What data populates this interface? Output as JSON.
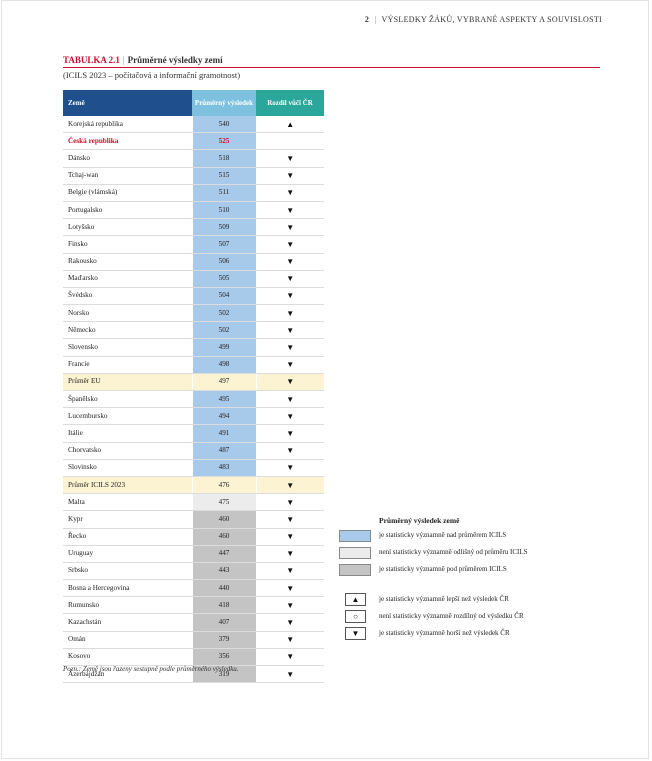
{
  "header": {
    "page_number": "2",
    "separator": "|",
    "section_title": "VÝSLEDKY ŽÁKŮ, VYBRANÉ ASPEKTY A SOUVISLOSTI"
  },
  "table_title": {
    "label": "TABULKA 2.1",
    "separator": "|",
    "title": "Průměrné výsledky zemí",
    "subtitle": "(ICILS 2023 – počítačová a informační gramotnost)"
  },
  "columns": {
    "country": "Země",
    "score": "Průměrný výsledek",
    "diff": "Rozdíl vůči ČR"
  },
  "colors": {
    "header_blue": "#1f4f8d",
    "score_header": "#7ec1df",
    "diff_header": "#2aa79a",
    "above": "#a7c9ea",
    "not_significant": "#ececec",
    "below": "#c4c4c4",
    "average_row": "#fcf3d2",
    "accent_red": "#c8102e"
  },
  "rows": [
    {
      "country": "Korejská republika",
      "score": "540",
      "diff": "▲",
      "cat": "above"
    },
    {
      "country": "Česká republika",
      "score": "525",
      "diff": "",
      "cat": "above",
      "highlight": "cz"
    },
    {
      "country": "Dánsko",
      "score": "518",
      "diff": "▼",
      "cat": "above"
    },
    {
      "country": "Tchaj-wan",
      "score": "515",
      "diff": "▼",
      "cat": "above"
    },
    {
      "country": "Belgie (vlámská)",
      "score": "511",
      "diff": "▼",
      "cat": "above"
    },
    {
      "country": "Portugalsko",
      "score": "510",
      "diff": "▼",
      "cat": "above"
    },
    {
      "country": "Lotyšsko",
      "score": "509",
      "diff": "▼",
      "cat": "above"
    },
    {
      "country": "Finsko",
      "score": "507",
      "diff": "▼",
      "cat": "above"
    },
    {
      "country": "Rakousko",
      "score": "506",
      "diff": "▼",
      "cat": "above"
    },
    {
      "country": "Maďarsko",
      "score": "505",
      "diff": "▼",
      "cat": "above"
    },
    {
      "country": "Švédsko",
      "score": "504",
      "diff": "▼",
      "cat": "above"
    },
    {
      "country": "Norsko",
      "score": "502",
      "diff": "▼",
      "cat": "above"
    },
    {
      "country": "Německo",
      "score": "502",
      "diff": "▼",
      "cat": "above"
    },
    {
      "country": "Slovensko",
      "score": "499",
      "diff": "▼",
      "cat": "above"
    },
    {
      "country": "Francie",
      "score": "498",
      "diff": "▼",
      "cat": "above"
    },
    {
      "country": "Průměr EU",
      "score": "497",
      "diff": "▼",
      "cat": "avg"
    },
    {
      "country": "Španělsko",
      "score": "495",
      "diff": "▼",
      "cat": "above"
    },
    {
      "country": "Lucembursko",
      "score": "494",
      "diff": "▼",
      "cat": "above"
    },
    {
      "country": "Itálie",
      "score": "491",
      "diff": "▼",
      "cat": "above"
    },
    {
      "country": "Chorvatsko",
      "score": "487",
      "diff": "▼",
      "cat": "above"
    },
    {
      "country": "Slovinsko",
      "score": "483",
      "diff": "▼",
      "cat": "above"
    },
    {
      "country": "Průměr ICILS 2023",
      "score": "476",
      "diff": "▼",
      "cat": "avg"
    },
    {
      "country": "Malta",
      "score": "475",
      "diff": "▼",
      "cat": "ns"
    },
    {
      "country": "Kypr",
      "score": "460",
      "diff": "▼",
      "cat": "below"
    },
    {
      "country": "Řecko",
      "score": "460",
      "diff": "▼",
      "cat": "below"
    },
    {
      "country": "Uruguay",
      "score": "447",
      "diff": "▼",
      "cat": "below"
    },
    {
      "country": "Srbsko",
      "score": "443",
      "diff": "▼",
      "cat": "below"
    },
    {
      "country": "Bosna a Hercegovina",
      "score": "440",
      "diff": "▼",
      "cat": "below"
    },
    {
      "country": "Rumunsko",
      "score": "418",
      "diff": "▼",
      "cat": "below"
    },
    {
      "country": "Kazachstán",
      "score": "407",
      "diff": "▼",
      "cat": "below"
    },
    {
      "country": "Omán",
      "score": "379",
      "diff": "▼",
      "cat": "below"
    },
    {
      "country": "Kosovo",
      "score": "356",
      "diff": "▼",
      "cat": "below"
    },
    {
      "country": "Ázerbájdžán",
      "score": "319",
      "diff": "▼",
      "cat": "below"
    }
  ],
  "legend": {
    "title": "Průměrný výsledek země",
    "items": [
      {
        "kind": "swatch",
        "cat": "above",
        "text": "je statisticky významně nad průměrem ICILS"
      },
      {
        "kind": "swatch",
        "cat": "ns",
        "text": "není statisticky významně odlišný od průměru ICILS"
      },
      {
        "kind": "swatch",
        "cat": "below",
        "text": "je statisticky významně pod průměrem ICILS"
      },
      {
        "kind": "symbol",
        "symbol": "▲",
        "text": "je statisticky významně lepší než výsledek ČR"
      },
      {
        "kind": "symbol",
        "symbol": "○",
        "text": "není statisticky významně rozdílný od výsledku ČR"
      },
      {
        "kind": "symbol",
        "symbol": "▼",
        "text": "je statisticky významně horší než výsledek ČR"
      }
    ]
  },
  "note": "Pozn.: Země jsou řazeny sestupně podle průměrného výsledku."
}
